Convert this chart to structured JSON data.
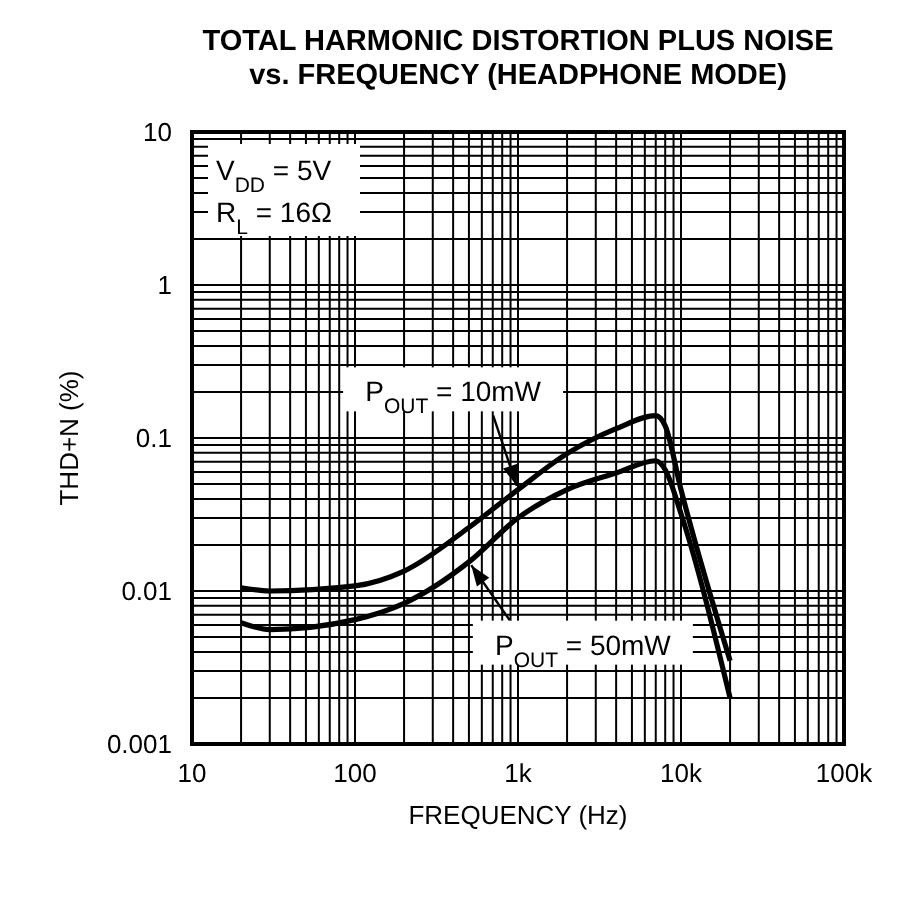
{
  "chart_data": {
    "type": "line",
    "title": "TOTAL HARMONIC DISTORTION PLUS NOISE vs. FREQUENCY (HEADPHONE MODE)",
    "xlabel": "FREQUENCY (Hz)",
    "ylabel": "THD+N (%)",
    "log": "xy",
    "grid": true,
    "xlim": [
      10,
      100000
    ],
    "ylim": [
      0.001,
      10
    ],
    "xticks": [
      10,
      100,
      {
        "value": 1000,
        "label": "1k"
      },
      {
        "value": 10000,
        "label": "10k"
      },
      {
        "value": 100000,
        "label": "100k"
      }
    ],
    "yticks": [
      0.001,
      0.01,
      0.1,
      1,
      10
    ],
    "annotations": [
      "V$_{DD}$ = 5V",
      "R$_{L}$ = 16Ω"
    ],
    "x": [
      20,
      30,
      100,
      200,
      500,
      1000,
      2000,
      4000,
      7000,
      8000,
      10000,
      20000
    ],
    "series": [
      {
        "name": "P$_{OUT}$ = 10mW",
        "color": "#000000",
        "values": [
          0.0105,
          0.01,
          0.0108,
          0.0135,
          0.026,
          0.046,
          0.079,
          0.115,
          0.14,
          0.12,
          0.046,
          0.0035
        ]
      },
      {
        "name": "P$_{OUT}$ = 50mW",
        "color": "#000000",
        "values": [
          0.0062,
          0.0056,
          0.0065,
          0.0083,
          0.0155,
          0.03,
          0.046,
          0.059,
          0.071,
          0.062,
          0.032,
          0.002
        ]
      }
    ]
  }
}
